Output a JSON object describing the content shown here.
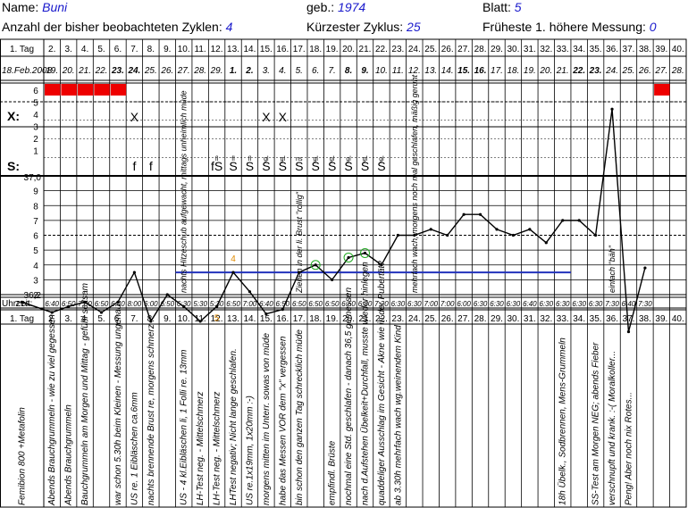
{
  "header": {
    "name_label": "Name:",
    "name_value": "Buni",
    "born_label": "geb.:",
    "born_value": "1974",
    "sheet_label": "Blatt:",
    "sheet_value": "5",
    "cycles_label": "Anzahl der bisher beobachteten Zyklen:",
    "cycles_value": "4",
    "shortest_label": "Kürzester Zyklus:",
    "shortest_value": "25",
    "earliest_label": "Früheste 1. höhere Messung:",
    "earliest_value": "0"
  },
  "labels": {
    "tag_row": "1. Tag",
    "start_date": "18.Feb.2008",
    "uhrzeit": "Uhrzeit:",
    "x_row": "X:",
    "s_row": "S:",
    "temp_37": "37,0",
    "temp_362": "36,2"
  },
  "chart_data": {
    "type": "line",
    "day_numbers": [
      "1. Tag",
      "2.",
      "3.",
      "4.",
      "5.",
      "6.",
      "7.",
      "8.",
      "9.",
      "10.",
      "11.",
      "12.",
      "13.",
      "14.",
      "15.",
      "16.",
      "17.",
      "18.",
      "19.",
      "20.",
      "21.",
      "22.",
      "23.",
      "24.",
      "25.",
      "26.",
      "27.",
      "28.",
      "29.",
      "30.",
      "31.",
      "32.",
      "33.",
      "34.",
      "35.",
      "36.",
      "37.",
      "38.",
      "39.",
      "40."
    ],
    "dates": [
      "18.Feb.2008",
      "19.",
      "20.",
      "21.",
      "22.",
      "23.",
      "24.",
      "25.",
      "26.",
      "27.",
      "28.",
      "29.",
      "1.",
      "2.",
      "3.",
      "4.",
      "5.",
      "6.",
      "7.",
      "8.",
      "9.",
      "10.",
      "11.",
      "12.",
      "13.",
      "14.",
      "15.",
      "16.",
      "17.",
      "18.",
      "19.",
      "20.",
      "21.",
      "22.",
      "23.",
      "24.",
      "25.",
      "26.",
      "27.",
      "28."
    ],
    "bold_dates": [
      5,
      6,
      12,
      13,
      19,
      20,
      26,
      27,
      33,
      34
    ],
    "bleeding_scale": [
      "6",
      "5",
      "4",
      "3",
      "2",
      "1"
    ],
    "bleeding_days": [
      [
        2,
        1
      ],
      [
        3,
        1
      ],
      [
        4,
        1
      ],
      [
        5,
        1
      ],
      [
        6,
        1
      ],
      [
        39,
        1
      ]
    ],
    "temp_scale": [
      "9",
      "8",
      "7",
      "6",
      "5",
      "4",
      "3",
      "2"
    ],
    "x_marks": [
      7,
      15,
      16
    ],
    "s_marks": [
      {
        "day": 7,
        "t": "f"
      },
      {
        "day": 8,
        "t": "f"
      },
      {
        "day": 12,
        "t": "fS",
        "n": "fl"
      },
      {
        "day": 13,
        "t": "S",
        "n": "fl"
      },
      {
        "day": 14,
        "t": "S",
        "n": "fl"
      },
      {
        "day": 15,
        "t": "S",
        "n": "gl"
      },
      {
        "day": 16,
        "t": "S",
        "n": "gl"
      },
      {
        "day": 17,
        "t": "S",
        "n": "ns"
      },
      {
        "day": 18,
        "t": "S",
        "n": "gl"
      },
      {
        "day": 19,
        "t": "S",
        "n": "gl"
      },
      {
        "day": 20,
        "t": "S",
        "n": "gl"
      },
      {
        "day": 21,
        "t": "S",
        "n": "gl"
      },
      {
        "day": 22,
        "t": "S",
        "n": "gl"
      }
    ],
    "temperature": [
      36.15,
      36.08,
      36.12,
      36.15,
      36.08,
      36.15,
      36.35,
      36.02,
      36.2,
      36.12,
      36.02,
      36.12,
      36.35,
      36.22,
      36.07,
      36.1,
      36.35,
      36.4,
      36.3,
      36.45,
      36.48,
      36.4,
      36.6,
      36.6,
      36.64,
      36.6,
      36.74,
      36.74,
      36.64,
      36.6,
      36.64,
      36.55,
      36.7,
      36.7,
      36.6,
      37.45,
      35.95,
      36.38
    ],
    "temp_labels": [
      {
        "day": 12,
        "t": "5"
      },
      {
        "day": 13,
        "t": "4"
      }
    ],
    "times": [
      "7:10",
      "6:40",
      "6:50",
      "7:00",
      "6:50",
      "6:40",
      "8:00",
      "6:00",
      "6:50",
      "6:30",
      "5:30",
      "5:30",
      "6:50",
      "7:00",
      "6:40",
      "6:50",
      "6:50",
      "6:50",
      "6:50",
      "6:50",
      "6:30",
      "7:20",
      "6:30",
      "6:30",
      "7:00",
      "7:00",
      "6:00",
      "6:30",
      "6:30",
      "6:30",
      "6:40",
      "6:30",
      "6:30",
      "6:30",
      "6:30",
      "7:30",
      "6:40",
      "7:30"
    ],
    "coverline": 36.35,
    "notes": [
      "Femibion 800 +Metafolin",
      "Abends Brauchgrummeln - wie zu viel gegessen",
      "Abends Brauchgrummeln",
      "Bauchgrummeln am Morgen und Mittag - gefühl seltsam",
      "",
      "war schon 5.30h beim Kleinen - Messung ungenau",
      "US re. 1 Eibläschen ca.6mm",
      "nachts brennende Brust re, morgens schmerz",
      "",
      "US - 4 kl.Eibläschen li, 1 Folli re. 13mm",
      "LH-Test neg. - Mittelschmerz",
      "LH-Test neg. - Mittelschmerz",
      "LHTest negativ; Nicht lange geschlafen.",
      "US re.1x19mm, 1x20mm :-)",
      "morgens mitten im Unterr. sowas von müde",
      "habe das Messen VOR dem \"x\" vergessen",
      "bin schon den ganzen Tag schrecklich müde",
      "",
      "empfindl. Brüste",
      "nochmal eine Std. geschlafen - danach 36,5 gemessen",
      "nach d.Aufstehen Übelkeit+Durchfall, musste wieder hinlegen",
      "quaddeliger Ausschlag im Gesicht - Akne wie in der Pubertät?",
      "ab 3.30h mehrfach wach wg.weinendem Kind",
      "",
      "",
      "",
      "",
      "",
      "",
      "",
      "",
      "",
      "18h Übelk., Sodbrennen, Mens-Grummeln",
      "",
      "SS-Test am Morgen NEG; abends Fieber",
      "verschnupft und krank. :-( Moralkoller...",
      "Peng! Aber noch nix Rotes...",
      "",
      "",
      ""
    ],
    "upper_notes": [
      {
        "day": 10,
        "t": "nachts Hitzeschub aufgewacht, mittags unheimlich müde"
      },
      {
        "day": 17,
        "t": "Ziehen in der li. Brust \"rollig\""
      },
      {
        "day": 24,
        "t": "mehrfach wach, morgens noch mal geschlafen, mäßig geruht"
      },
      {
        "day": 36,
        "t": "einfach \"bäh\""
      }
    ],
    "colors": {
      "line": "#000000",
      "coverline": "#2233bb",
      "bleed": "#ee0000",
      "blue": "#1a1acc",
      "orange": "#e08a00",
      "green": "#22aa22"
    }
  }
}
